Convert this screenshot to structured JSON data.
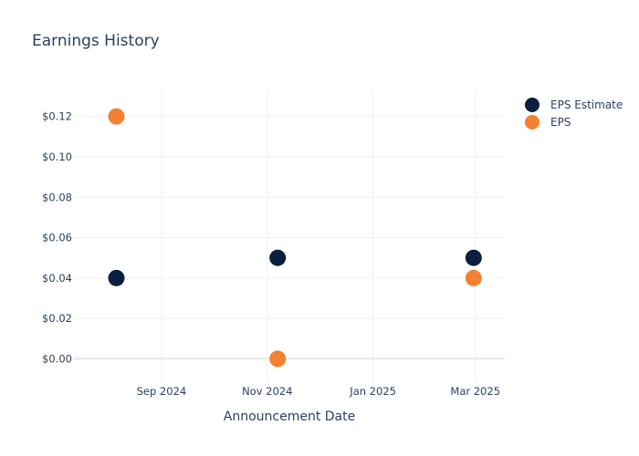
{
  "chart_data": {
    "type": "scatter",
    "title": "Earnings History",
    "xlabel": "Announcement Date",
    "ylabel": "",
    "x_axis_kind": "date",
    "xlim": [
      "2024-07-12",
      "2025-03-18"
    ],
    "ylim": [
      -0.012,
      0.1325
    ],
    "x_ticks": [
      {
        "date": "2024-09-01",
        "label": "Sep 2024"
      },
      {
        "date": "2024-11-01",
        "label": "Nov 2024"
      },
      {
        "date": "2025-01-01",
        "label": "Jan 2025"
      },
      {
        "date": "2025-03-01",
        "label": "Mar 2025"
      }
    ],
    "y_ticks": [
      {
        "value": 0.0,
        "label": "$0.00"
      },
      {
        "value": 0.02,
        "label": "$0.02"
      },
      {
        "value": 0.04,
        "label": "$0.04"
      },
      {
        "value": 0.06,
        "label": "$0.06"
      },
      {
        "value": 0.08,
        "label": "$0.08"
      },
      {
        "value": 0.1,
        "label": "$0.10"
      },
      {
        "value": 0.12,
        "label": "$0.12"
      }
    ],
    "grid": true,
    "legend_position": "top-right",
    "series": [
      {
        "name": "EPS Estimate",
        "color": "#0b1f3f",
        "x": [
          "2024-08-06",
          "2024-11-07",
          "2025-02-28"
        ],
        "y": [
          0.04,
          0.05,
          0.05
        ]
      },
      {
        "name": "EPS",
        "color": "#f58031",
        "x": [
          "2024-08-06",
          "2024-11-07",
          "2025-02-28"
        ],
        "y": [
          0.12,
          0.0,
          0.04
        ]
      }
    ]
  }
}
